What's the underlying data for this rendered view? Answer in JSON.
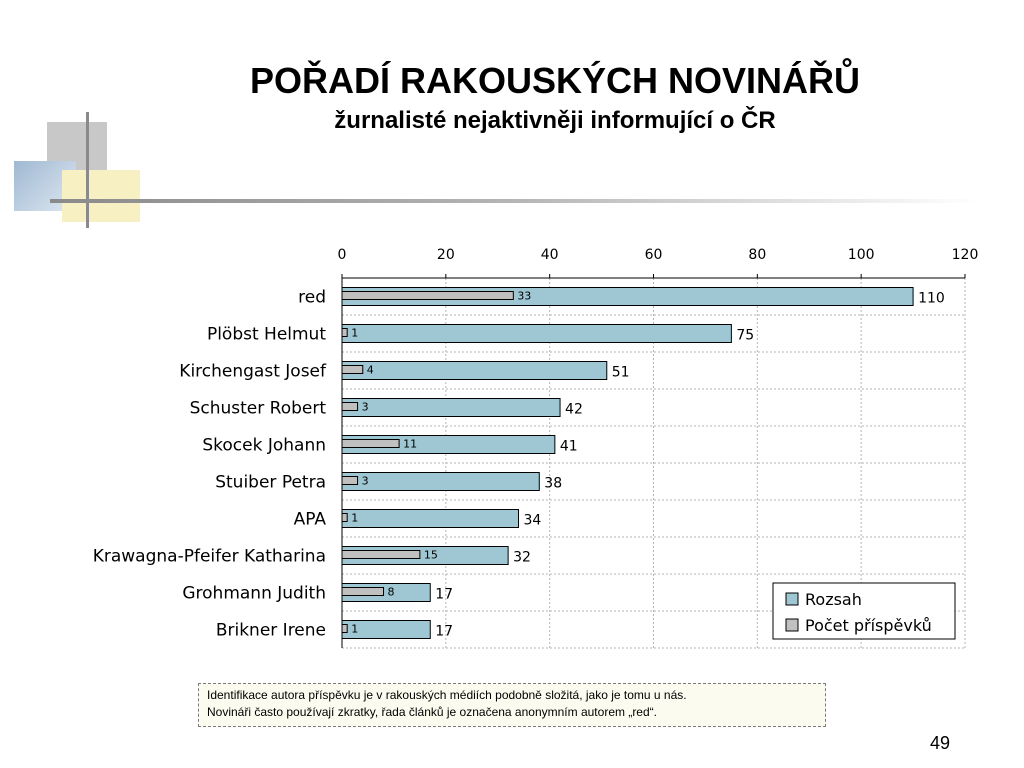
{
  "slide": {
    "title": "POŘADÍ RAKOUSKÝCH NOVINÁŘŮ",
    "subtitle": "žurnalisté nejaktivněji informující o ČR",
    "note_line1": "Identifikace autora příspěvku je v rakouských médiích podobně složitá, jako je tomu u nás.",
    "note_line2": "Novináři často používají zkratky, řada článků je označena anonymním autorem „red“.",
    "page_number": "49"
  },
  "chart_data": {
    "type": "bar",
    "orientation": "horizontal",
    "categories": [
      "red",
      "Plöbst  Helmut",
      "Kirchengast Josef",
      "Schuster Robert",
      "Skocek Johann",
      "Stuiber Petra",
      "APA",
      "Krawagna-Pfeifer Katharina",
      "Grohmann Judith",
      "Brikner Irene"
    ],
    "series": [
      {
        "name": "Rozsah",
        "values": [
          110,
          75,
          51,
          42,
          41,
          38,
          34,
          32,
          17,
          17
        ],
        "color": "#9ec7d3"
      },
      {
        "name": "Počet příspěvků",
        "values": [
          33,
          1,
          4,
          3,
          11,
          3,
          1,
          15,
          8,
          1
        ],
        "color": "#c0c0c0"
      }
    ],
    "xlim": [
      0,
      120
    ],
    "ticks": [
      "0",
      "20",
      "40",
      "60",
      "80",
      "100",
      "120"
    ],
    "axis_position": "top",
    "grid": true,
    "legend_position": "bottom-right"
  }
}
